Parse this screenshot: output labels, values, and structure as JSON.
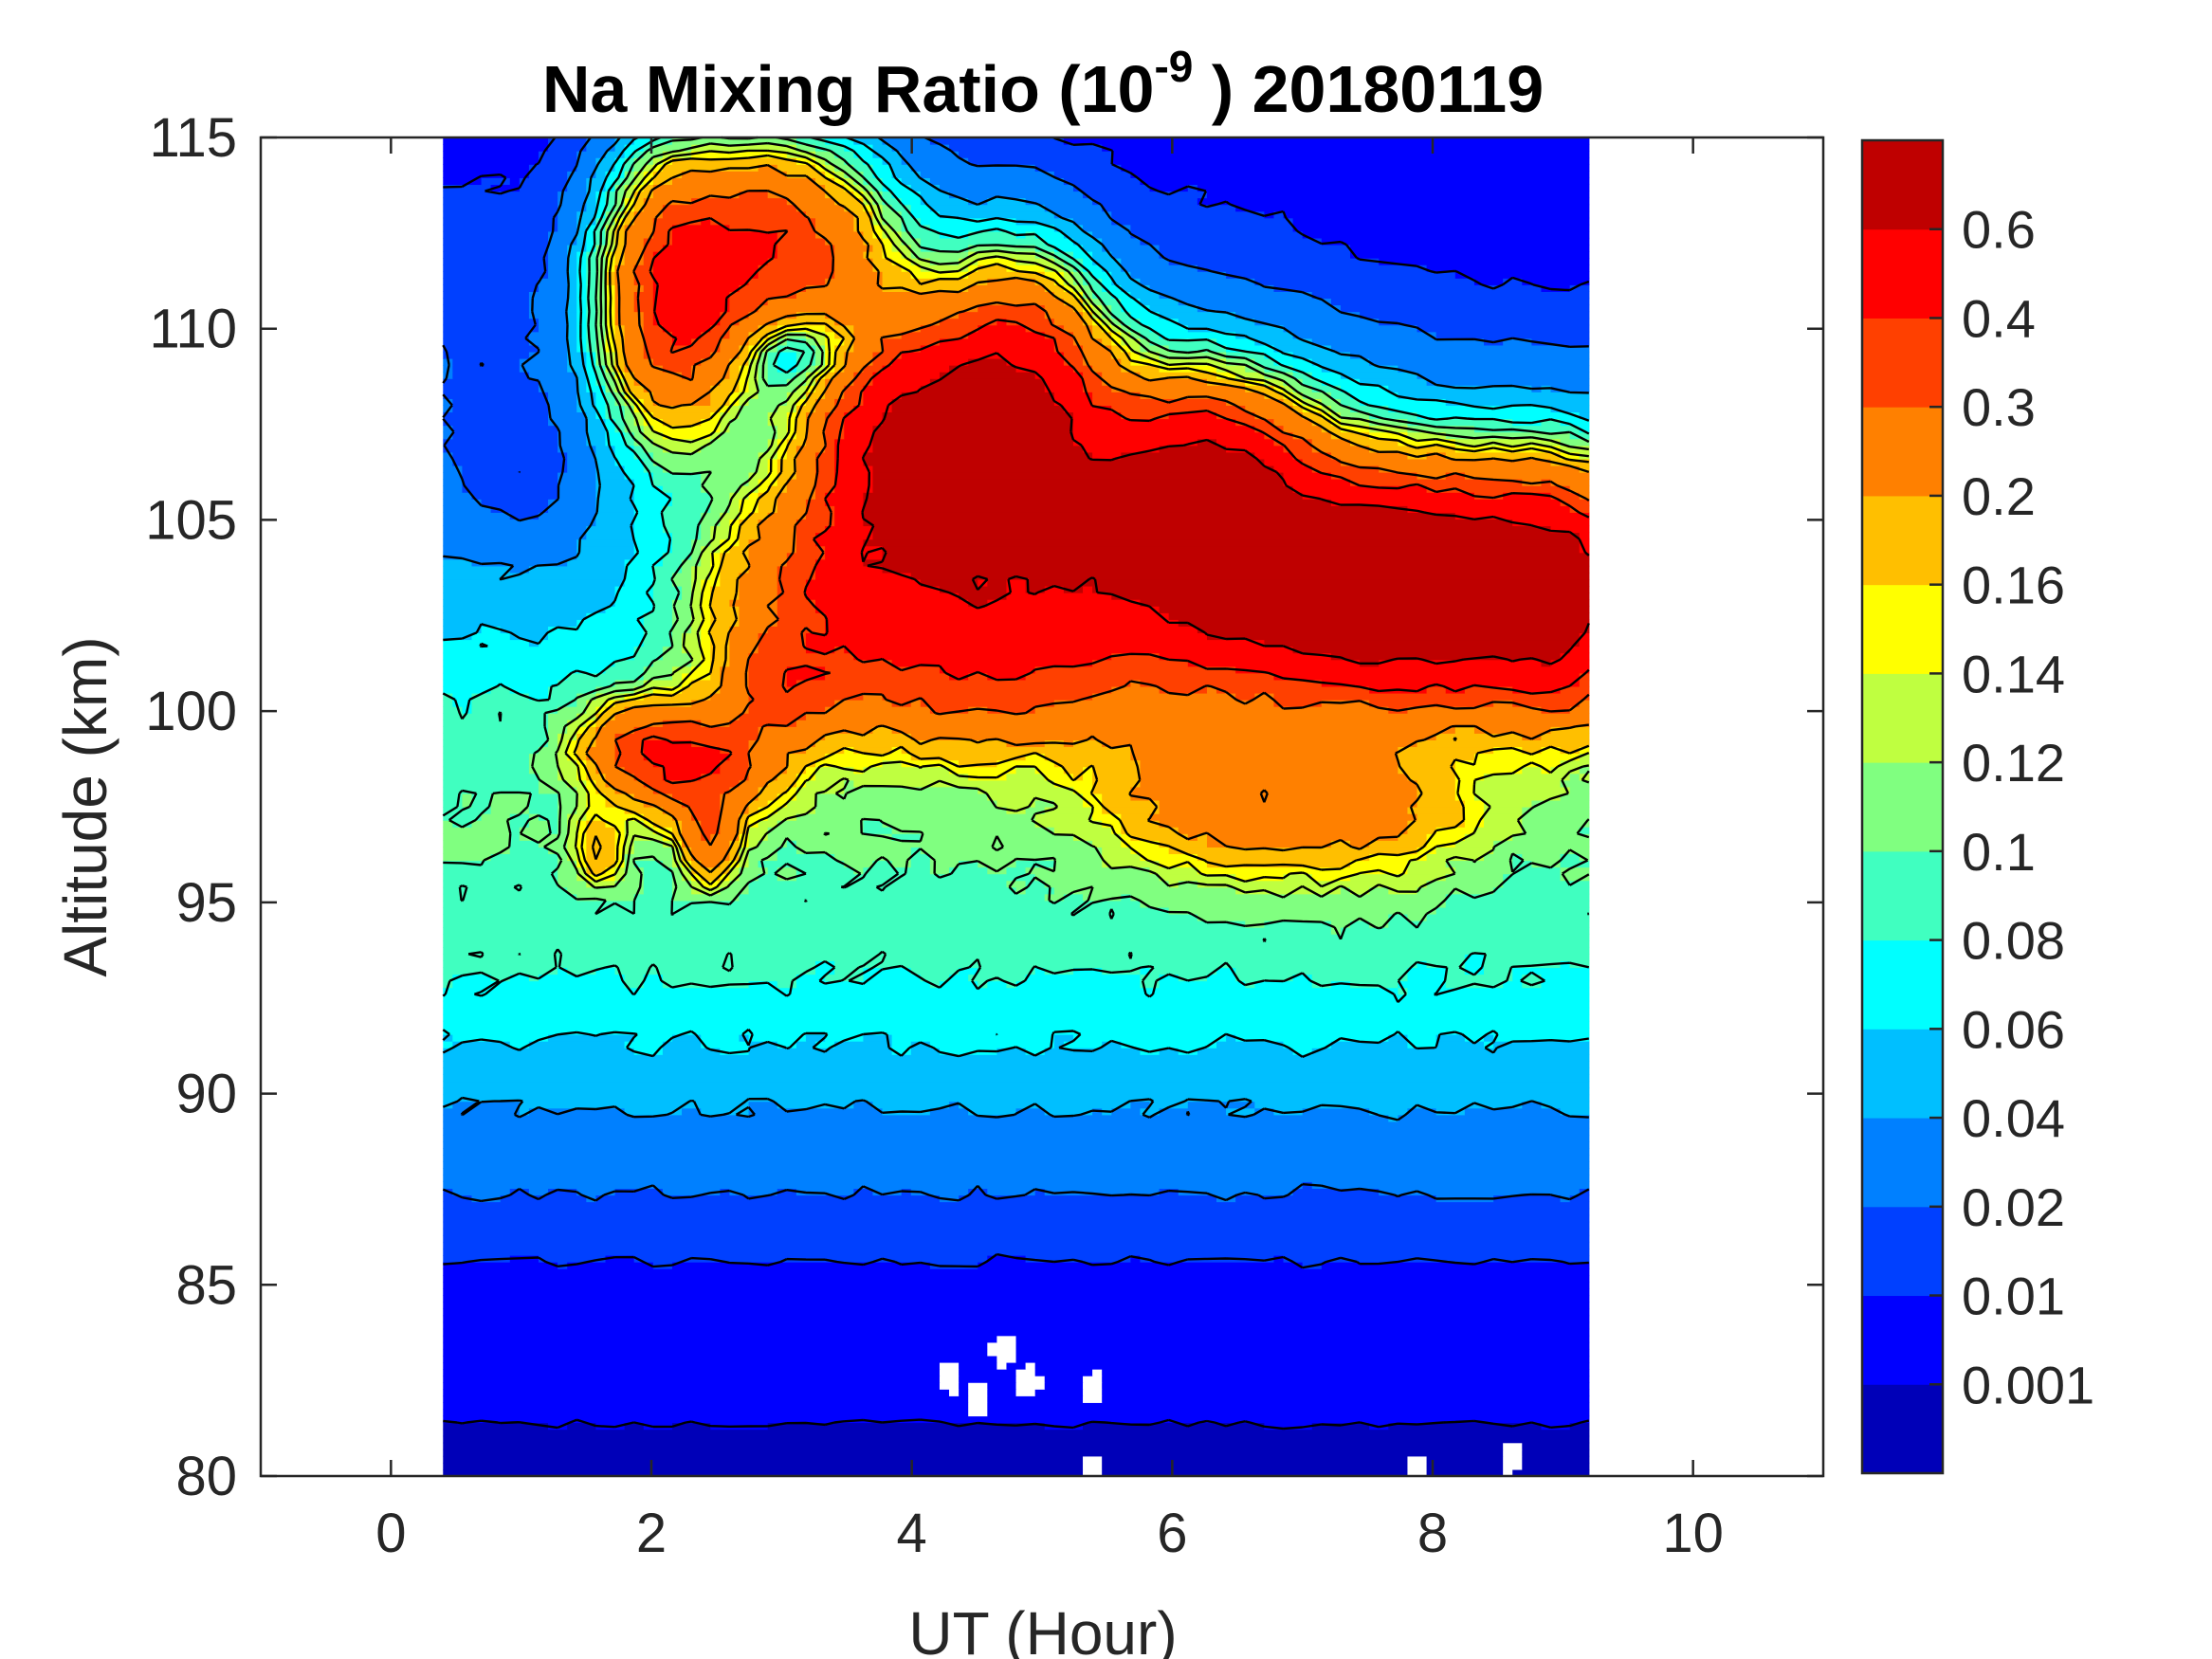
{
  "chart_data": {
    "type": "heatmap",
    "subtype": "filled-contour",
    "title": {
      "prefix": "Na Mixing Ratio (10",
      "superscript": "-9",
      "suffix": " ) 20180119"
    },
    "xlabel": "UT (Hour)",
    "ylabel": "Altitude (km)",
    "xlim": [
      -1,
      11
    ],
    "ylim": [
      80,
      115
    ],
    "xticks": [
      0,
      2,
      4,
      6,
      8,
      10
    ],
    "yticks": [
      80,
      85,
      90,
      95,
      100,
      105,
      110,
      115
    ],
    "data_x_range": [
      0.4,
      9.2
    ],
    "grid": false,
    "colorbar": {
      "levels": [
        0,
        0.001,
        0.01,
        0.02,
        0.04,
        0.06,
        0.08,
        0.1,
        0.12,
        0.14,
        0.16,
        0.2,
        0.3,
        0.4,
        0.6,
        0.7
      ],
      "tick_labels": [
        "0.001",
        "0.01",
        "0.02",
        "0.04",
        "0.06",
        "0.08",
        "0.1",
        "0.12",
        "0.14",
        "0.16",
        "0.2",
        "0.3",
        "0.4",
        "0.6"
      ],
      "colors": [
        "#0000b8",
        "#0000ff",
        "#0040ff",
        "#0080ff",
        "#00bfff",
        "#00ffff",
        "#40ffc0",
        "#80ff80",
        "#bfff40",
        "#ffff00",
        "#ffbf00",
        "#ff8000",
        "#ff4000",
        "#ff0000",
        "#bf0000"
      ],
      "placement": "right"
    },
    "field_model": {
      "description": "Approximate Na mixing ratio field (10^-9) vs UT hour and altitude km, reconstructed from contour shapes",
      "background_profile": [
        {
          "alt": 80,
          "value": 0.0004
        },
        {
          "alt": 83,
          "value": 0.003
        },
        {
          "alt": 86,
          "value": 0.012
        },
        {
          "alt": 88,
          "value": 0.025
        },
        {
          "alt": 90,
          "value": 0.045
        },
        {
          "alt": 92,
          "value": 0.07
        },
        {
          "alt": 94,
          "value": 0.09
        },
        {
          "alt": 97,
          "value": 0.1
        },
        {
          "alt": 100,
          "value": 0.085
        },
        {
          "alt": 103,
          "value": 0.05
        },
        {
          "alt": 106,
          "value": 0.03
        },
        {
          "alt": 110,
          "value": 0.018
        },
        {
          "alt": 115,
          "value": 0.008
        }
      ],
      "features": [
        {
          "ut": 2.2,
          "alt": 110.8,
          "sx": 0.35,
          "sy": 2.2,
          "amp": 0.42
        },
        {
          "ut": 2.9,
          "alt": 112.3,
          "sx": 0.45,
          "sy": 1.6,
          "amp": 0.28
        },
        {
          "ut": 3.4,
          "alt": 111.5,
          "sx": 0.5,
          "sy": 2.0,
          "amp": 0.12
        },
        {
          "ut": 4.0,
          "alt": 107.0,
          "sx": 0.45,
          "sy": 2.0,
          "amp": 0.55
        },
        {
          "ut": 4.8,
          "alt": 108.0,
          "sx": 0.4,
          "sy": 2.2,
          "amp": 0.5
        },
        {
          "ut": 5.3,
          "alt": 105.0,
          "sx": 0.9,
          "sy": 2.4,
          "amp": 0.35
        },
        {
          "ut": 6.3,
          "alt": 106.0,
          "sx": 0.45,
          "sy": 1.4,
          "amp": 0.45
        },
        {
          "ut": 7.2,
          "alt": 103.3,
          "sx": 0.9,
          "sy": 1.6,
          "amp": 0.55
        },
        {
          "ut": 8.2,
          "alt": 103.2,
          "sx": 0.8,
          "sy": 1.7,
          "amp": 0.6
        },
        {
          "ut": 9.0,
          "alt": 103.0,
          "sx": 0.4,
          "sy": 2.0,
          "amp": 0.35
        },
        {
          "ut": 6.0,
          "alt": 104.0,
          "sx": 1.6,
          "sy": 2.5,
          "amp": 0.2
        },
        {
          "ut": 3.6,
          "alt": 103.0,
          "sx": 0.7,
          "sy": 2.0,
          "amp": 0.3
        },
        {
          "ut": 2.4,
          "alt": 98.6,
          "sx": 0.35,
          "sy": 0.9,
          "amp": 0.3
        },
        {
          "ut": 1.9,
          "alt": 99.0,
          "sx": 0.3,
          "sy": 0.8,
          "amp": 0.2
        },
        {
          "ut": 1.6,
          "alt": 96.4,
          "sx": 0.12,
          "sy": 0.6,
          "amp": 0.12
        },
        {
          "ut": 2.45,
          "alt": 96.6,
          "sx": 0.13,
          "sy": 0.7,
          "amp": 0.2
        },
        {
          "ut": 3.0,
          "alt": 100.6,
          "sx": 0.3,
          "sy": 1.0,
          "amp": 0.18
        },
        {
          "ut": 4.6,
          "alt": 101.0,
          "sx": 0.6,
          "sy": 1.3,
          "amp": 0.15
        },
        {
          "ut": 6.5,
          "alt": 98.0,
          "sx": 0.7,
          "sy": 1.4,
          "amp": 0.15
        },
        {
          "ut": 7.5,
          "alt": 97.5,
          "sx": 0.6,
          "sy": 1.2,
          "amp": 0.09
        },
        {
          "ut": 3.2,
          "alt": 109.5,
          "sx": 0.35,
          "sy": 0.7,
          "amp": -0.12
        },
        {
          "ut": 1.0,
          "alt": 106.0,
          "sx": 0.4,
          "sy": 1.5,
          "amp": -0.02
        },
        {
          "ut": 8.5,
          "alt": 111.5,
          "sx": 1.2,
          "sy": 3.0,
          "amp": -0.006
        }
      ],
      "missing_regions": [
        {
          "ut": 4.3,
          "alt": 82.6
        },
        {
          "ut": 4.7,
          "alt": 83.3
        },
        {
          "ut": 4.5,
          "alt": 82.0
        },
        {
          "ut": 4.9,
          "alt": 82.5
        },
        {
          "ut": 5.4,
          "alt": 82.3
        },
        {
          "ut": 5.4,
          "alt": 80.1
        },
        {
          "ut": 7.9,
          "alt": 80.1
        },
        {
          "ut": 8.6,
          "alt": 80.5
        }
      ]
    }
  }
}
